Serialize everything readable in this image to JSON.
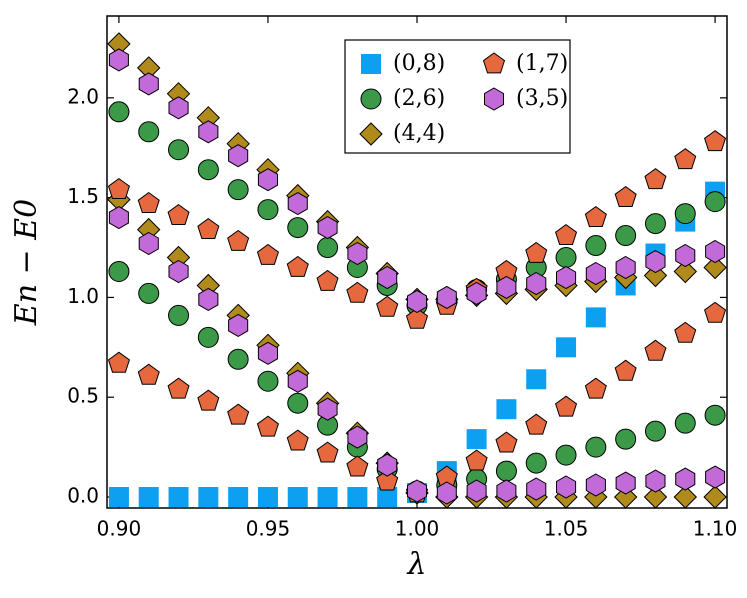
{
  "chart_data": {
    "type": "scatter",
    "xlabel": "λ",
    "ylabel": "En − E0",
    "x": [
      0.9,
      0.91,
      0.92,
      0.93,
      0.94,
      0.95,
      0.96,
      0.97,
      0.98,
      0.99,
      1.0,
      1.01,
      1.02,
      1.03,
      1.04,
      1.05,
      1.06,
      1.07,
      1.08,
      1.09,
      1.1
    ],
    "xlim": [
      0.896,
      1.104
    ],
    "ylim": [
      -0.055,
      2.41
    ],
    "xticks": [
      {
        "value": 0.9,
        "label": "0.90"
      },
      0.95,
      {
        "value": 1.0,
        "label": "1.00"
      },
      1.05,
      {
        "value": 1.1,
        "label": "1.10"
      }
    ],
    "yticks": [
      {
        "value": 0,
        "label": "0.0"
      },
      0.5,
      {
        "value": 1,
        "label": "1.0"
      },
      1.5,
      {
        "value": 2,
        "label": "2.0"
      }
    ],
    "series": [
      {
        "name": "(0,8)",
        "color": "#0d9ff0",
        "marker": "square",
        "values": [
          [
            0,
            0,
            0,
            0,
            0,
            0,
            0,
            0,
            0,
            0,
            0.02,
            0.13,
            0.29,
            0.44,
            0.59,
            0.75,
            0.9,
            1.06,
            1.22,
            1.38,
            1.53
          ]
        ]
      },
      {
        "name": "(2,6)",
        "color": "#3a9a48",
        "marker": "circle",
        "values": [
          [
            1.93,
            1.83,
            1.74,
            1.64,
            1.54,
            1.44,
            1.35,
            1.25,
            1.15,
            1.06,
            0.96,
            0.99,
            1.04,
            1.09,
            1.15,
            1.2,
            1.26,
            1.31,
            1.37,
            1.42,
            1.48
          ],
          [
            1.13,
            1.02,
            0.91,
            0.8,
            0.69,
            0.58,
            0.47,
            0.36,
            0.25,
            0.14,
            0.03,
            0.06,
            0.09,
            0.13,
            0.17,
            0.21,
            0.25,
            0.29,
            0.33,
            0.37,
            0.41
          ]
        ]
      },
      {
        "name": "(4,4)",
        "color": "#b08a1a",
        "marker": "diamond",
        "values": [
          [
            2.27,
            2.15,
            2.02,
            1.9,
            1.77,
            1.64,
            1.51,
            1.38,
            1.25,
            1.12,
            0.99,
            0.99,
            1.01,
            1.02,
            1.04,
            1.06,
            1.08,
            1.1,
            1.11,
            1.13,
            1.15
          ],
          [
            1.49,
            1.34,
            1.2,
            1.06,
            0.91,
            0.76,
            0.62,
            0.47,
            0.32,
            0.17,
            0.02,
            0,
            0,
            0,
            0,
            0,
            0,
            0,
            0,
            0,
            0
          ]
        ]
      },
      {
        "name": "(1,7)",
        "color": "#e5683f",
        "marker": "pentagon",
        "values": [
          [
            1.54,
            1.47,
            1.41,
            1.34,
            1.28,
            1.21,
            1.15,
            1.08,
            1.02,
            0.95,
            0.89,
            0.96,
            1.04,
            1.13,
            1.22,
            1.31,
            1.4,
            1.5,
            1.59,
            1.69,
            1.78
          ],
          [
            0.67,
            0.61,
            0.54,
            0.48,
            0.41,
            0.35,
            0.28,
            0.22,
            0.15,
            0.08,
            0.02,
            0.1,
            0.18,
            0.27,
            0.36,
            0.45,
            0.54,
            0.63,
            0.73,
            0.82,
            0.92
          ]
        ]
      },
      {
        "name": "(3,5)",
        "color": "#c26ad8",
        "marker": "hexagon",
        "values": [
          [
            2.19,
            2.07,
            1.95,
            1.83,
            1.71,
            1.59,
            1.47,
            1.35,
            1.22,
            1.1,
            0.98,
            1.0,
            1.02,
            1.05,
            1.07,
            1.1,
            1.12,
            1.15,
            1.18,
            1.21,
            1.23
          ],
          [
            1.4,
            1.27,
            1.13,
            0.99,
            0.86,
            0.72,
            0.58,
            0.44,
            0.3,
            0.16,
            0.03,
            0.02,
            0.03,
            0.03,
            0.04,
            0.05,
            0.06,
            0.07,
            0.08,
            0.09,
            0.1
          ]
        ]
      }
    ]
  }
}
